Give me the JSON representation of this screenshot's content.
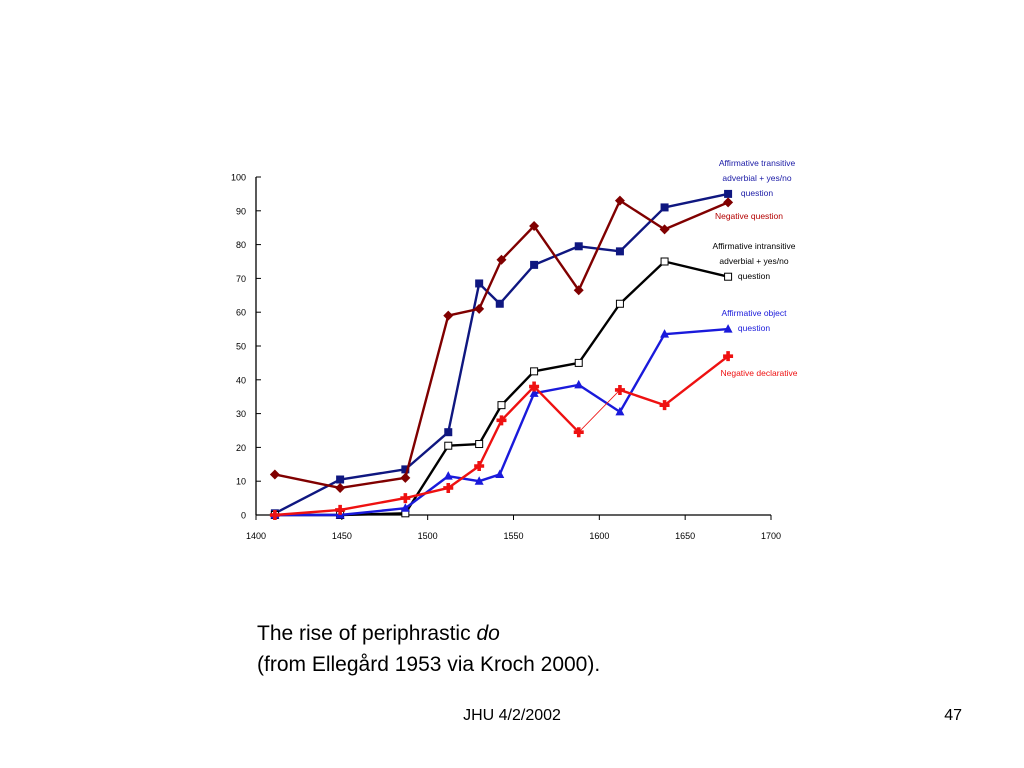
{
  "chart_data": {
    "type": "line",
    "xlim": [
      1400,
      1700
    ],
    "ylim": [
      0,
      100
    ],
    "xticks": [
      1400,
      1450,
      1500,
      1550,
      1600,
      1650,
      1700
    ],
    "yticks": [
      0,
      10,
      20,
      30,
      40,
      50,
      60,
      70,
      80,
      90,
      100
    ],
    "grid": false,
    "legend": "inline labels to the right of the series ends",
    "series": [
      {
        "name": "Affirmative transitive adverbial + yes/no question",
        "label_lines": [
          "Affirmative transitive",
          "adverbial + yes/no",
          "question"
        ],
        "color": "#0f1780",
        "label_color": "#1a1aa6",
        "marker": "filled-square",
        "x": [
          1411,
          1449,
          1487,
          1512,
          1530,
          1542,
          1562,
          1588,
          1612,
          1638,
          1675
        ],
        "y": [
          0.5,
          10.5,
          13.5,
          24.5,
          68.5,
          62.5,
          74,
          79.5,
          78,
          91,
          95
        ]
      },
      {
        "name": "Negative question",
        "label_lines": [
          "Negative question"
        ],
        "color": "#800000",
        "label_color": "#b30000",
        "marker": "filled-diamond",
        "x": [
          1411,
          1449,
          1487,
          1512,
          1530,
          1543,
          1562,
          1588,
          1612,
          1638,
          1675
        ],
        "y": [
          12,
          8,
          11,
          59,
          61,
          75.5,
          85.5,
          66.5,
          93,
          84.5,
          92.5
        ]
      },
      {
        "name": "Affirmative intransitive adverbial + yes/no question",
        "label_lines": [
          "Affirmative intransitive",
          "adverbial + yes/no",
          "question"
        ],
        "color": "#000000",
        "label_color": "#000000",
        "marker": "open-square",
        "x": [
          1411,
          1449,
          1487,
          1512,
          1530,
          1543,
          1562,
          1588,
          1612,
          1638,
          1675
        ],
        "y": [
          0,
          0,
          0.5,
          20.5,
          21,
          32.5,
          42.5,
          45,
          62.5,
          75,
          70.5
        ]
      },
      {
        "name": "Affirmative object question",
        "label_lines": [
          "Affirmative object",
          "question"
        ],
        "color": "#1a1adb",
        "label_color": "#1a1adb",
        "marker": "filled-triangle",
        "x": [
          1411,
          1449,
          1487,
          1512,
          1530,
          1542,
          1562,
          1588,
          1612,
          1638,
          1675
        ],
        "y": [
          0,
          0,
          2,
          11.5,
          10,
          12,
          36,
          38.5,
          30.5,
          53.5,
          55
        ]
      },
      {
        "name": "Negative declarative",
        "label_lines": [
          "Negative declarative"
        ],
        "color": "#ee1111",
        "label_color": "#ee1111",
        "marker": "filled-cross",
        "x": [
          1411,
          1449,
          1487,
          1512,
          1530,
          1543,
          1562,
          1588,
          1612,
          1638,
          1675
        ],
        "y": [
          0,
          1.5,
          5,
          8,
          14.5,
          28,
          38,
          24.5,
          37,
          32.5,
          47
        ]
      }
    ]
  },
  "caption": {
    "line1_text": "The rise of periphrastic ",
    "line1_italic": "do",
    "line2": "(from Ellegård 1953 via Kroch 2000)."
  },
  "footer": {
    "center": "JHU 4/2/2002",
    "page_number": "47"
  }
}
